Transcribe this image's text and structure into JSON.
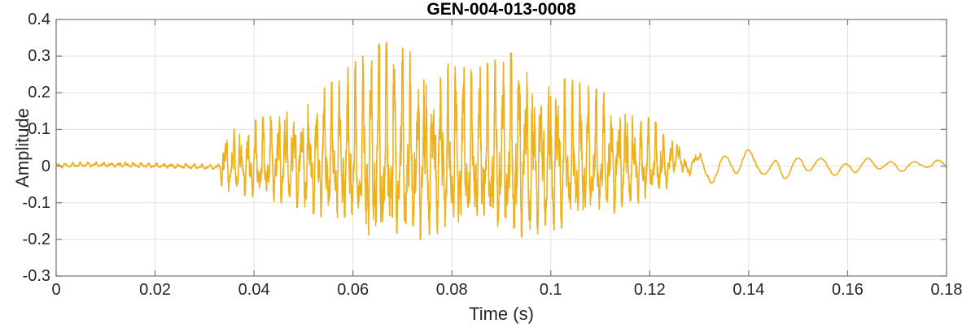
{
  "chart_data": {
    "type": "line",
    "title": "GEN-004-013-0008",
    "xlabel": "Time (s)",
    "ylabel": "Amplitude",
    "xlim": [
      0,
      0.18
    ],
    "ylim": [
      -0.3,
      0.4
    ],
    "xticks": [
      0,
      0.02,
      0.04,
      0.06,
      0.08,
      0.1,
      0.12,
      0.14,
      0.16,
      0.18
    ],
    "xtick_labels": [
      "0",
      "0.02",
      "0.04",
      "0.06",
      "0.08",
      "0.1",
      "0.12",
      "0.14",
      "0.16",
      "0.18"
    ],
    "yticks": [
      -0.3,
      -0.2,
      -0.1,
      0,
      0.1,
      0.2,
      0.3,
      0.4
    ],
    "ytick_labels": [
      "-0.3",
      "-0.2",
      "-0.1",
      "0",
      "0.1",
      "0.2",
      "0.3",
      "0.4"
    ],
    "grid": true,
    "legend": "none",
    "colors": {
      "line": "#EDB120",
      "grid": "#e2e2e2",
      "axis_box": "#808080",
      "tick_text": "#262626",
      "title_text": "#000000",
      "background": "#ffffff"
    },
    "series": [
      {
        "name": "GEN-004-013-0008 waveform",
        "kind": "acoustic-burst",
        "noise_floor_amp": 0.008,
        "burst_start_s": 0.0335,
        "burst_end_s": 0.125,
        "peak_amp": 0.33,
        "peak_time_s": 0.066,
        "min_amp": -0.21,
        "neg_scale": 0.63,
        "envelope_t": [
          0,
          0.033,
          0.0335,
          0.036,
          0.04,
          0.044,
          0.048,
          0.052,
          0.056,
          0.06,
          0.064,
          0.066,
          0.069,
          0.072,
          0.076,
          0.08,
          0.084,
          0.088,
          0.091,
          0.094,
          0.098,
          0.102,
          0.106,
          0.11,
          0.114,
          0.118,
          0.122,
          0.126,
          0.13,
          0.136,
          0.144,
          0.152,
          0.162,
          0.172,
          0.18
        ],
        "envelope_a": [
          0.008,
          0.008,
          0.09,
          0.1,
          0.12,
          0.14,
          0.16,
          0.19,
          0.22,
          0.27,
          0.31,
          0.33,
          0.32,
          0.3,
          0.26,
          0.27,
          0.25,
          0.27,
          0.3,
          0.28,
          0.26,
          0.24,
          0.22,
          0.2,
          0.17,
          0.14,
          0.11,
          0.06,
          0.045,
          0.035,
          0.028,
          0.022,
          0.017,
          0.012,
          0.01
        ],
        "synth": {
          "seed": 7,
          "samples": 5400,
          "freqs_hz": [
            650,
            1230,
            2100
          ],
          "weights": [
            0.62,
            0.3,
            0.22
          ],
          "drift_steps": [
            0.12,
            0.18,
            0.26,
            0.06
          ],
          "noise_weight": 0.5,
          "pos_sharpen": 1.15,
          "clamp_pos": 1.04,
          "clamp_neg": -0.7,
          "tail_start_s": 0.122,
          "tail_blend_s": 0.012,
          "tail_freqs_hz": [
            210,
            80
          ],
          "tail_weights": [
            0.9,
            0.45
          ]
        }
      }
    ]
  }
}
